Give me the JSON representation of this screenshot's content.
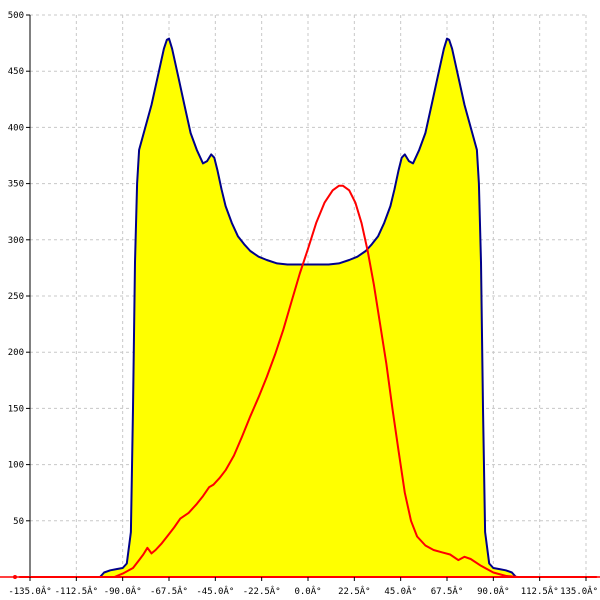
{
  "chart_data": {
    "type": "area",
    "title": "",
    "xlabel": "",
    "ylabel": "",
    "xlim": [
      -135,
      135
    ],
    "ylim": [
      0,
      500
    ],
    "grid": true,
    "legend": "none",
    "x_ticks": [
      {
        "value": -135,
        "label": "-135.0Â°"
      },
      {
        "value": -112.5,
        "label": "-112.5Â°"
      },
      {
        "value": -90,
        "label": "-90.0Â°"
      },
      {
        "value": -67.5,
        "label": "-67.5Â°"
      },
      {
        "value": -45,
        "label": "-45.0Â°"
      },
      {
        "value": -22.5,
        "label": "-22.5Â°"
      },
      {
        "value": 0,
        "label": "0.0Â°"
      },
      {
        "value": 22.5,
        "label": "22.5Â°"
      },
      {
        "value": 45,
        "label": "45.0Â°"
      },
      {
        "value": 67.5,
        "label": "67.5Â°"
      },
      {
        "value": 90,
        "label": "90.0Â°"
      },
      {
        "value": 112.5,
        "label": "112.5Â°"
      },
      {
        "value": 135,
        "label": "135.0Â°"
      }
    ],
    "y_ticks": [
      {
        "value": 50,
        "label": "50"
      },
      {
        "value": 100,
        "label": "100"
      },
      {
        "value": 150,
        "label": "150"
      },
      {
        "value": 200,
        "label": "200"
      },
      {
        "value": 250,
        "label": "250"
      },
      {
        "value": 300,
        "label": "300"
      },
      {
        "value": 350,
        "label": "350"
      },
      {
        "value": 400,
        "label": "400"
      },
      {
        "value": 450,
        "label": "450"
      },
      {
        "value": 500,
        "label": "500"
      }
    ],
    "series": [
      {
        "color": "#00008b",
        "fill": "#ffff00",
        "points": [
          [
            -101,
            0
          ],
          [
            -99,
            4
          ],
          [
            -96,
            6
          ],
          [
            -93,
            7
          ],
          [
            -90,
            8
          ],
          [
            -88,
            12
          ],
          [
            -86,
            40
          ],
          [
            -85,
            150
          ],
          [
            -84,
            280
          ],
          [
            -83,
            350
          ],
          [
            -82,
            380
          ],
          [
            -79,
            400
          ],
          [
            -76,
            420
          ],
          [
            -73,
            445
          ],
          [
            -70,
            470
          ],
          [
            -68.5,
            478
          ],
          [
            -67.5,
            479
          ],
          [
            -66,
            470
          ],
          [
            -63,
            445
          ],
          [
            -60,
            420
          ],
          [
            -57,
            395
          ],
          [
            -54,
            380
          ],
          [
            -51,
            368
          ],
          [
            -49,
            370
          ],
          [
            -47,
            376
          ],
          [
            -45.5,
            373
          ],
          [
            -44,
            362
          ],
          [
            -42,
            345
          ],
          [
            -40,
            330
          ],
          [
            -37,
            315
          ],
          [
            -34,
            303
          ],
          [
            -31,
            296
          ],
          [
            -28,
            290
          ],
          [
            -24,
            285
          ],
          [
            -20,
            282
          ],
          [
            -15,
            279
          ],
          [
            -10,
            278
          ],
          [
            -5,
            278
          ],
          [
            0,
            278
          ],
          [
            5,
            278
          ],
          [
            10,
            278
          ],
          [
            15,
            279
          ],
          [
            20,
            282
          ],
          [
            24,
            285
          ],
          [
            28,
            290
          ],
          [
            31,
            296
          ],
          [
            34,
            303
          ],
          [
            37,
            315
          ],
          [
            40,
            330
          ],
          [
            42,
            345
          ],
          [
            44,
            362
          ],
          [
            45.5,
            373
          ],
          [
            47,
            376
          ],
          [
            49,
            370
          ],
          [
            51,
            368
          ],
          [
            54,
            380
          ],
          [
            57,
            395
          ],
          [
            60,
            420
          ],
          [
            63,
            445
          ],
          [
            66,
            470
          ],
          [
            67.5,
            479
          ],
          [
            68.5,
            478
          ],
          [
            70,
            470
          ],
          [
            73,
            445
          ],
          [
            76,
            420
          ],
          [
            79,
            400
          ],
          [
            82,
            380
          ],
          [
            83,
            350
          ],
          [
            84,
            280
          ],
          [
            85,
            150
          ],
          [
            86,
            40
          ],
          [
            88,
            12
          ],
          [
            90,
            8
          ],
          [
            93,
            7
          ],
          [
            96,
            6
          ],
          [
            99,
            4
          ],
          [
            101,
            0
          ]
        ]
      },
      {
        "color": "#ff0000",
        "fill": "none",
        "points": [
          [
            -94,
            0
          ],
          [
            -90,
            3
          ],
          [
            -85,
            8
          ],
          [
            -82,
            15
          ],
          [
            -80,
            20
          ],
          [
            -78,
            26
          ],
          [
            -76,
            21
          ],
          [
            -74,
            24
          ],
          [
            -71,
            30
          ],
          [
            -68,
            37
          ],
          [
            -65,
            44
          ],
          [
            -62,
            52
          ],
          [
            -58,
            57
          ],
          [
            -54,
            65
          ],
          [
            -51,
            72
          ],
          [
            -48,
            80
          ],
          [
            -46,
            82
          ],
          [
            -43,
            88
          ],
          [
            -40,
            95
          ],
          [
            -36,
            108
          ],
          [
            -32,
            125
          ],
          [
            -28,
            143
          ],
          [
            -24,
            160
          ],
          [
            -20,
            178
          ],
          [
            -16,
            198
          ],
          [
            -12,
            220
          ],
          [
            -8,
            245
          ],
          [
            -4,
            270
          ],
          [
            0,
            292
          ],
          [
            4,
            315
          ],
          [
            8,
            333
          ],
          [
            12,
            344
          ],
          [
            15,
            348
          ],
          [
            17,
            348
          ],
          [
            20,
            344
          ],
          [
            23,
            333
          ],
          [
            26,
            315
          ],
          [
            29,
            290
          ],
          [
            32,
            260
          ],
          [
            35,
            225
          ],
          [
            38,
            190
          ],
          [
            41,
            150
          ],
          [
            44,
            112
          ],
          [
            47,
            75
          ],
          [
            50,
            50
          ],
          [
            53,
            36
          ],
          [
            57,
            28
          ],
          [
            61,
            24
          ],
          [
            65,
            22
          ],
          [
            69,
            20
          ],
          [
            73,
            15
          ],
          [
            76,
            18
          ],
          [
            79,
            16
          ],
          [
            84,
            10
          ],
          [
            90,
            4
          ],
          [
            96,
            1
          ],
          [
            102,
            0
          ]
        ]
      },
      {
        "color": "#ff0000",
        "fill": "none",
        "points": [
          [
            -140,
            0
          ],
          [
            140,
            0
          ]
        ]
      }
    ]
  }
}
